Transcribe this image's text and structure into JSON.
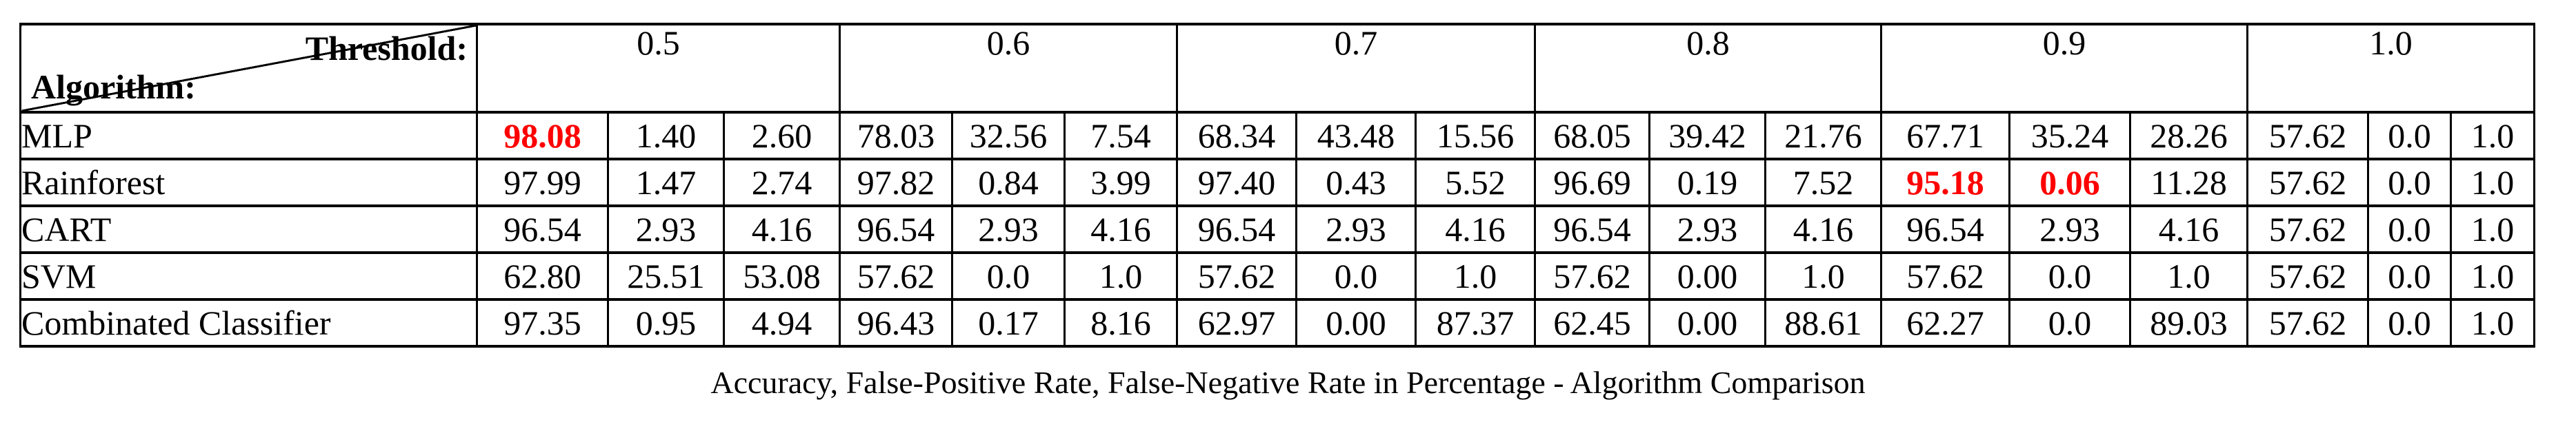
{
  "table": {
    "corner": {
      "top_right": "Threshold:",
      "bottom_left": "Algorithm:"
    },
    "thresholds": [
      "0.5",
      "0.6",
      "0.7",
      "0.8",
      "0.9",
      "1.0"
    ],
    "rows": [
      {
        "label": "MLP",
        "values": [
          "98.08",
          "1.40",
          "2.60",
          "78.03",
          "32.56",
          "7.54",
          "68.34",
          "43.48",
          "15.56",
          "68.05",
          "39.42",
          "21.76",
          "67.71",
          "35.24",
          "28.26",
          "57.62",
          "0.0",
          "1.0"
        ],
        "red_indices": [
          0
        ]
      },
      {
        "label": "Rainforest",
        "values": [
          "97.99",
          "1.47",
          "2.74",
          "97.82",
          "0.84",
          "3.99",
          "97.40",
          "0.43",
          "5.52",
          "96.69",
          "0.19",
          "7.52",
          "95.18",
          "0.06",
          "11.28",
          "57.62",
          "0.0",
          "1.0"
        ],
        "red_indices": [
          12,
          13
        ]
      },
      {
        "label": "CART",
        "values": [
          "96.54",
          "2.93",
          "4.16",
          "96.54",
          "2.93",
          "4.16",
          "96.54",
          "2.93",
          "4.16",
          "96.54",
          "2.93",
          "4.16",
          "96.54",
          "2.93",
          "4.16",
          "57.62",
          "0.0",
          "1.0"
        ],
        "red_indices": []
      },
      {
        "label": "SVM",
        "values": [
          "62.80",
          "25.51",
          "53.08",
          "57.62",
          "0.0",
          "1.0",
          "57.62",
          "0.0",
          "1.0",
          "57.62",
          "0.00",
          "1.0",
          "57.62",
          "0.0",
          "1.0",
          "57.62",
          "0.0",
          "1.0"
        ],
        "red_indices": []
      },
      {
        "label": "Combinated Classifier",
        "values": [
          "97.35",
          "0.95",
          "4.94",
          "96.43",
          "0.17",
          "8.16",
          "62.97",
          "0.00",
          "87.37",
          "62.45",
          "0.00",
          "88.61",
          "62.27",
          "0.0",
          "89.03",
          "57.62",
          "0.0",
          "1.0"
        ],
        "red_indices": []
      }
    ]
  },
  "caption": "Accuracy, False-Positive Rate, False-Negative Rate in Percentage - Algorithm Comparison",
  "colors": {
    "highlight": "#ff0000",
    "text": "#000000",
    "border": "#000000",
    "background": "#ffffff"
  }
}
